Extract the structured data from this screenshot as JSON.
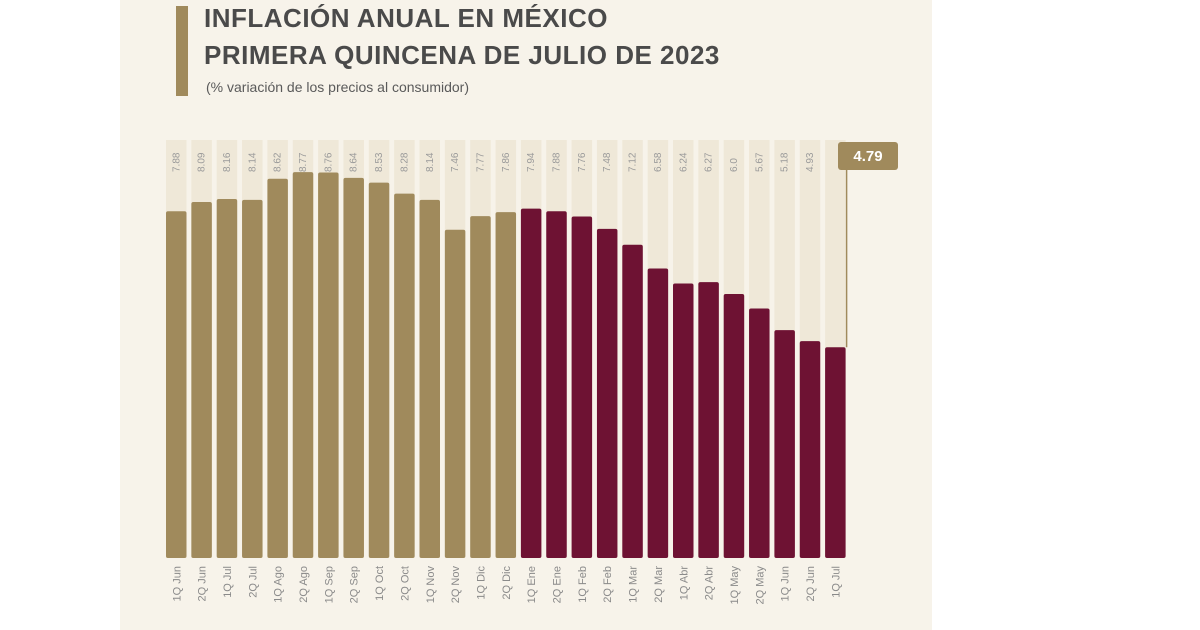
{
  "header": {
    "title_line1": "INFLACIÓN ANUAL EN MÉXICO",
    "title_line2": "PRIMERA QUINCENA DE JULIO DE 2023",
    "subtitle": "(% variación de los precios al consumidor)"
  },
  "highlight": {
    "value_label": "4.79"
  },
  "colors": {
    "series_2022": "#a08a5c",
    "series_2023": "#6e1233",
    "background": "#f7f3ea"
  },
  "chart_data": {
    "type": "bar",
    "title": "INFLACIÓN ANUAL EN MÉXICO PRIMERA QUINCENA DE JULIO DE 2023",
    "ylabel": "",
    "ylim": [
      0,
      9.5
    ],
    "grid": false,
    "categories": [
      "1Q Jun",
      "2Q Jun",
      "1Q Jul",
      "2Q Jul",
      "1Q Ago",
      "2Q Ago",
      "1Q Sep",
      "2Q Sep",
      "1Q Oct",
      "2Q Oct",
      "1Q Nov",
      "2Q Nov",
      "1Q Dic",
      "2Q Dic",
      "1Q Ene",
      "2Q Ene",
      "1Q Feb",
      "2Q Feb",
      "1Q Mar",
      "2Q Mar",
      "1Q Abr",
      "2Q Abr",
      "1Q May",
      "2Q May",
      "1Q Jun",
      "2Q Jun",
      "1Q Jul"
    ],
    "values": [
      7.88,
      8.09,
      8.16,
      8.14,
      8.62,
      8.77,
      8.76,
      8.64,
      8.53,
      8.28,
      8.14,
      7.46,
      7.77,
      7.86,
      7.94,
      7.88,
      7.76,
      7.48,
      7.12,
      6.58,
      6.24,
      6.27,
      6.0,
      5.67,
      5.18,
      4.93,
      4.79
    ],
    "value_labels": [
      "7.88",
      "8.09",
      "8.16",
      "8.14",
      "8.62",
      "8.77",
      "8.76",
      "8.64",
      "8.53",
      "8.28",
      "8.14",
      "7.46",
      "7.77",
      "7.86",
      "7.94",
      "7.88",
      "7.76",
      "7.48",
      "7.12",
      "6.58",
      "6.24",
      "6.27",
      "6.0",
      "5.67",
      "5.18",
      "4.93",
      ""
    ],
    "series_split_index": 14
  }
}
